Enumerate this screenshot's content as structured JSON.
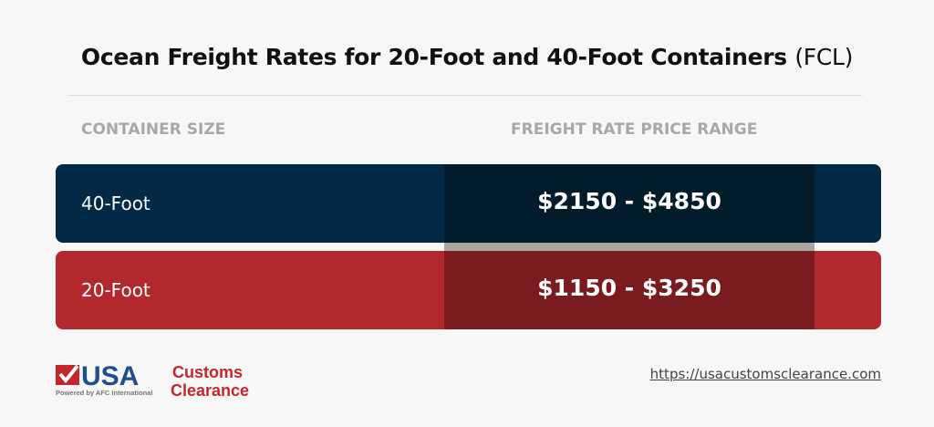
{
  "title": {
    "main": "Ocean Freight Rates for 20-Foot and 40-Foot Containers",
    "suffix": "(FCL)"
  },
  "chart_data": {
    "type": "table",
    "columns": [
      "CONTAINER SIZE",
      "FREIGHT RATE PRICE RANGE"
    ],
    "rows": [
      {
        "size": "40-Foot",
        "range": "$2150 - $4850",
        "min": 2150,
        "max": 4850,
        "color": "#022a46"
      },
      {
        "size": "20-Foot",
        "range": "$1150 - $3250",
        "min": 1150,
        "max": 3250,
        "color": "#b3282d"
      }
    ]
  },
  "footer": {
    "logo_text": "USA Customs Clearance",
    "logo_tagline": "Powered by AFC International",
    "url": "https://usacustomsclearance.com"
  }
}
